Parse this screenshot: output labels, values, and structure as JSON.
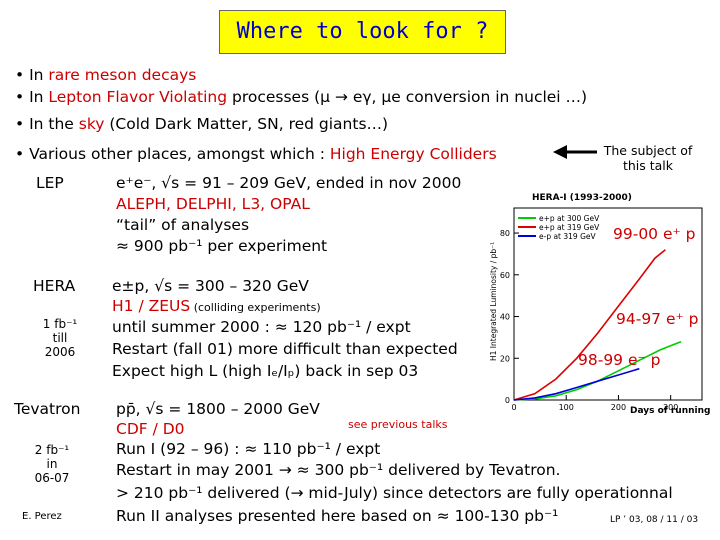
{
  "title": "Where to look for ?",
  "bullets": {
    "b1_prefix": "• In ",
    "b1_rare": "rare meson decays",
    "b2_prefix": "• In ",
    "b2_lfv": "Lepton Flavor Violating",
    "b2_rest": " processes  (μ → eγ, μe conversion in nuclei …)",
    "b3_prefix": "• In the ",
    "b3_sky": "sky",
    "b3_rest": " (Cold Dark Matter, SN, red giants…)",
    "b4_prefix": "• Various other places, amongst which :  ",
    "b4_hec": "High Energy Colliders"
  },
  "subject_note": "The subject of\nthis talk",
  "lep": {
    "label": "LEP",
    "line1": "e⁺e⁻, √s = 91 – 209 GeV, ended in nov 2000",
    "line2": "ALEPH, DELPHI, L3, OPAL",
    "line3": "“tail” of analyses",
    "line4": "≈ 900 pb⁻¹  per experiment"
  },
  "hera": {
    "label": "HERA",
    "lumi_note": "1 fb⁻¹\ntill\n2006",
    "line1": "e±p, √s  = 300 – 320 GeV",
    "line2_main": "H1 / ZEUS",
    "line2_small": "  (colliding experiments)",
    "line3": "until summer 2000 : ≈ 120 pb⁻¹ / expt",
    "line4": "Restart (fall 01) more difficult than expected",
    "line5": "Expect high L (high Iₑ/Iₚ) back in sep 03"
  },
  "tevatron": {
    "label": "Tevatron",
    "lumi_note": "2 fb⁻¹\nin\n06-07",
    "author": "E. Perez",
    "line1": "pp̄, √s = 1800 – 2000 GeV",
    "see_prev": "see previous talks",
    "line2": "CDF / D0",
    "line3": "Run I (92 – 96) : ≈ 110 pb⁻¹ / expt",
    "line4": "Restart in may 2001 → ≈ 300 pb⁻¹ delivered by Tevatron.",
    "line5": "> 210 pb⁻¹ delivered (→ mid-July) since detectors are fully operationnal",
    "line6": "Run II analyses presented here based on ≈ 100-130 pb⁻¹",
    "footer": "LP ’ 03, 08 / 11 / 03"
  },
  "plot": {
    "title": "HERA-I  (1993-2000)",
    "ylabel": "H1 Integrated Luminosity / pb⁻¹",
    "xlabel": "Days of running",
    "legend": [
      "e+p at 300 GeV",
      "e+p at 319 GeV",
      "e-p at 319 GeV"
    ],
    "yticks": [
      "0",
      "20",
      "40",
      "60",
      "80"
    ],
    "xticks": [
      "0",
      "100",
      "200",
      "300"
    ],
    "label_9900": "99-00 e⁺ p",
    "label_9497": "94-97 e⁺ p",
    "label_9899": "98-99 e⁻ p",
    "colors": {
      "green": "#00cc00",
      "red": "#dd0000",
      "blue": "#0000dd"
    }
  }
}
